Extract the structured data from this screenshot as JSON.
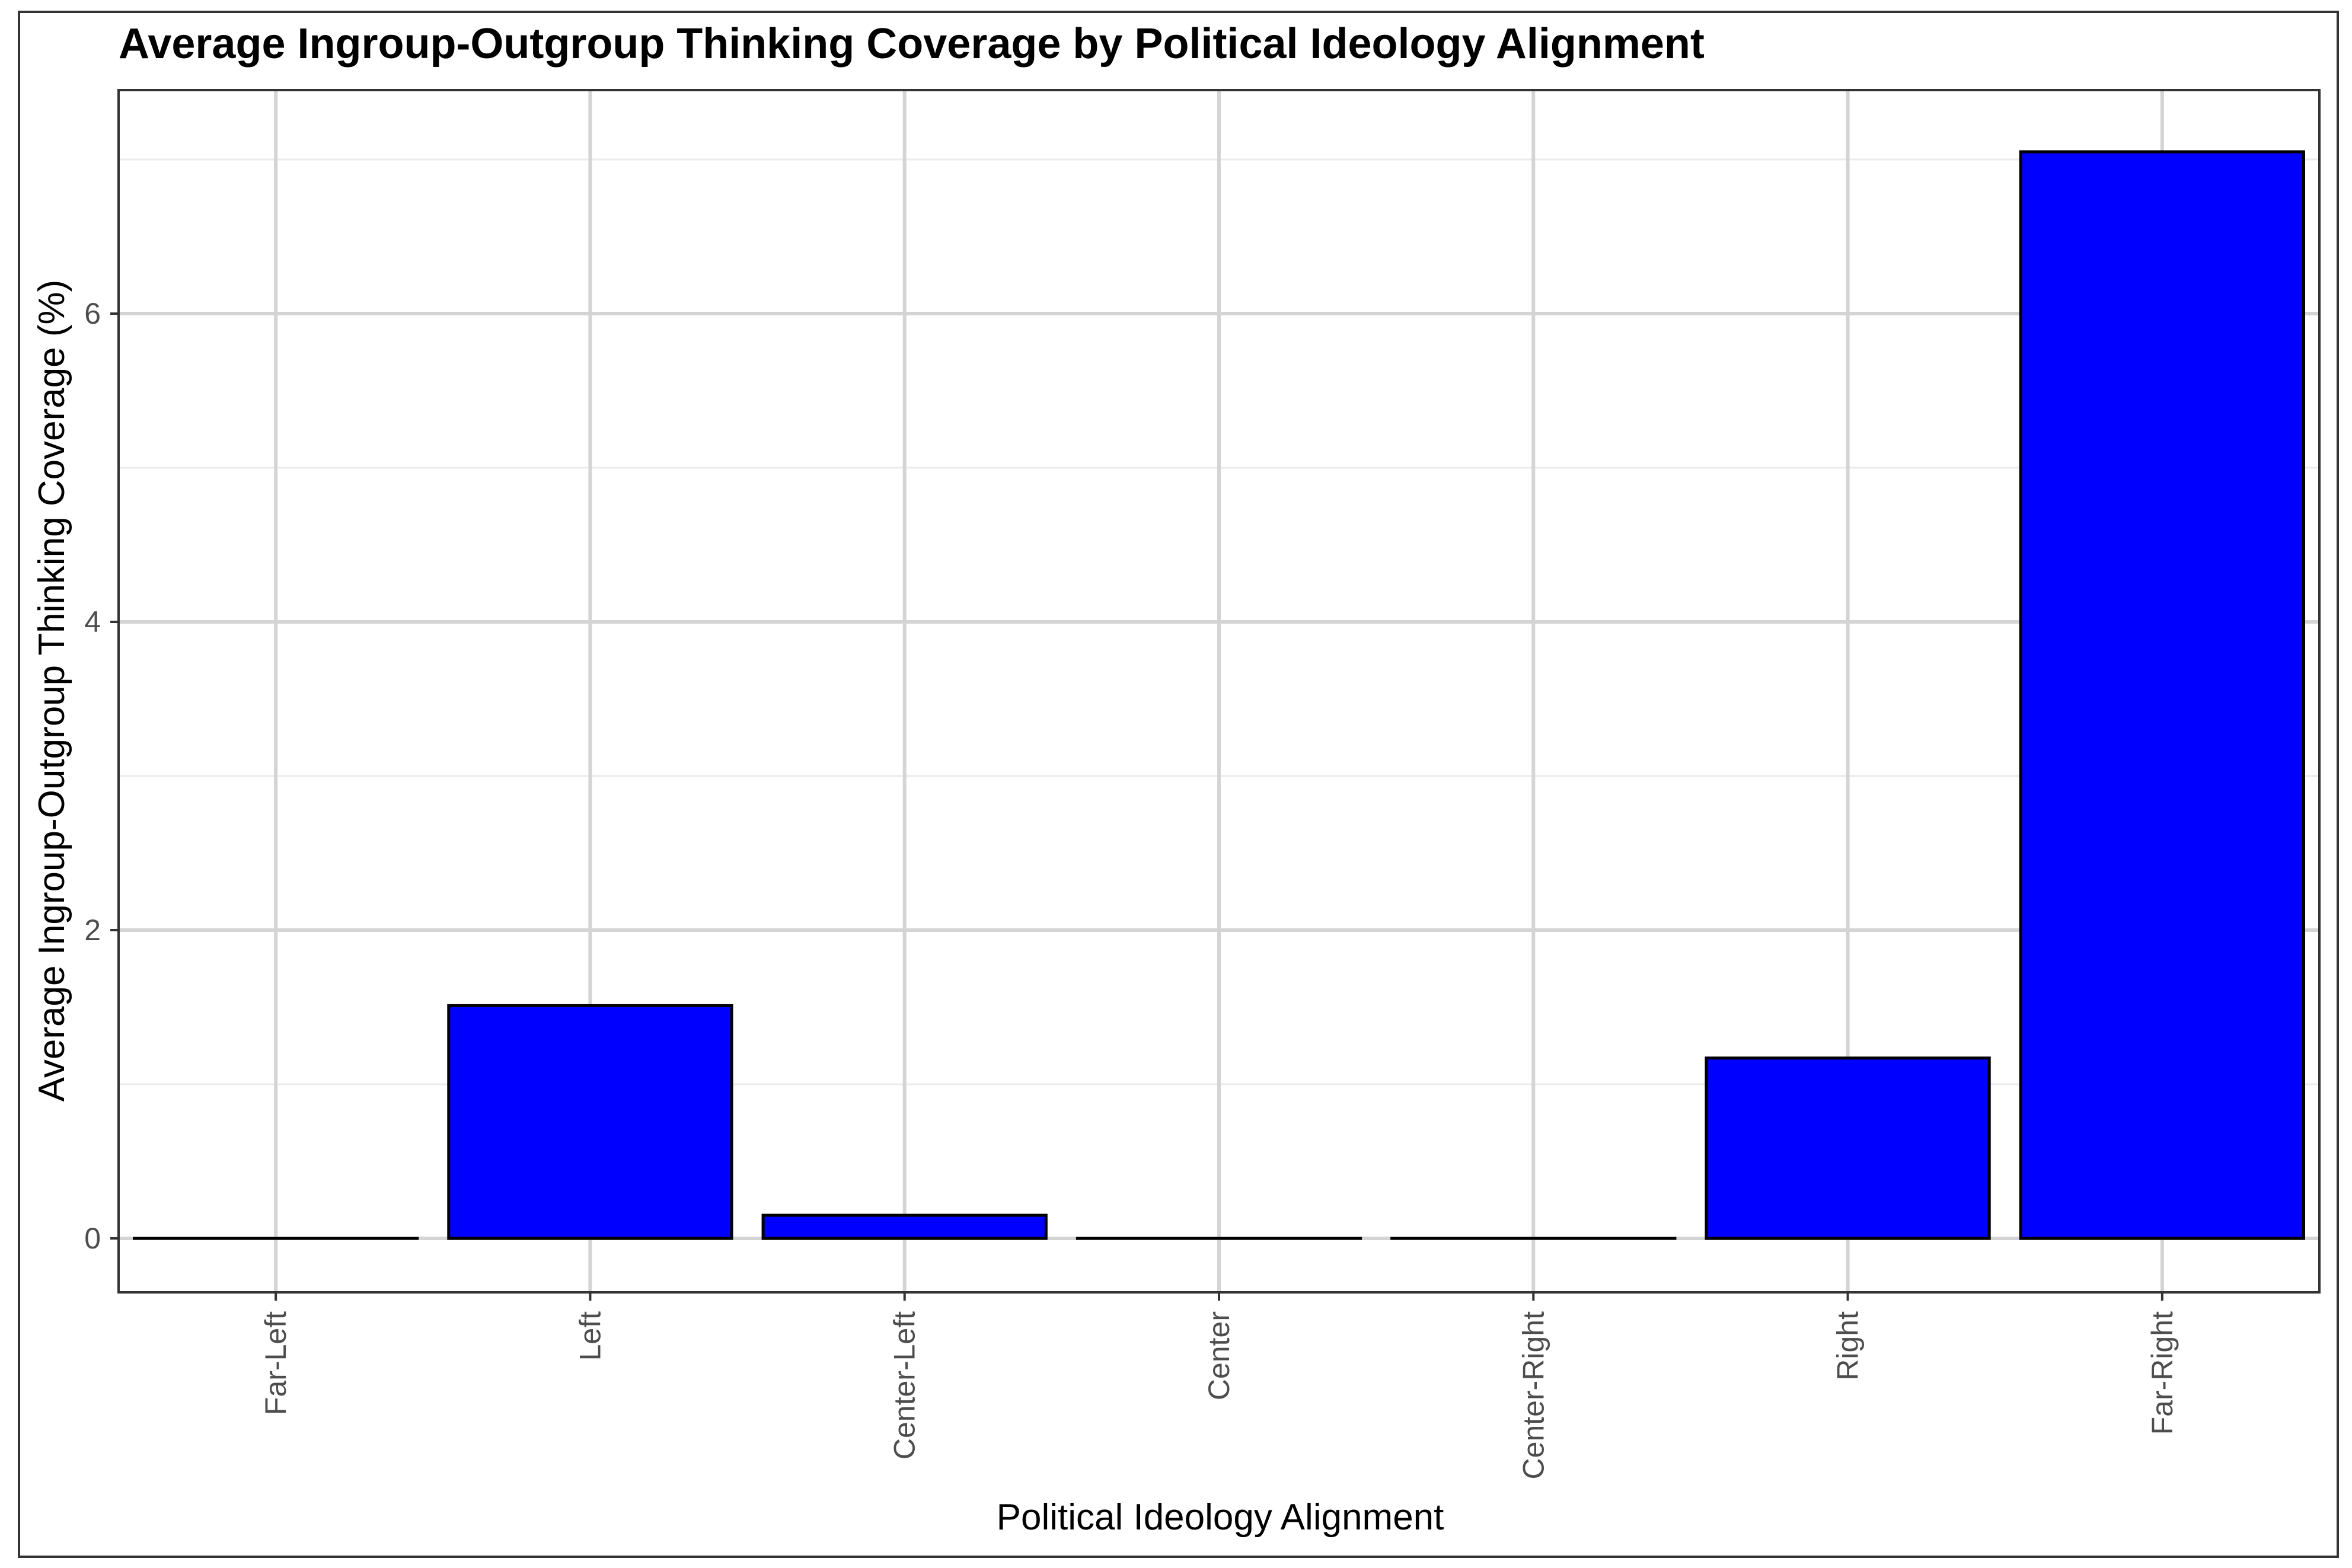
{
  "chart_data": {
    "type": "bar",
    "title": "Average Ingroup-Outgroup Thinking Coverage by Political Ideology Alignment",
    "xlabel": "Political Ideology Alignment",
    "ylabel": "Average Ingroup-Outgroup Thinking Coverage (%)",
    "categories": [
      "Far-Left",
      "Left",
      "Center-Left",
      "Center",
      "Center-Right",
      "Right",
      "Far-Right"
    ],
    "values": [
      0,
      1.51,
      0.15,
      0,
      0,
      1.17,
      7.05
    ],
    "ylim": [
      -0.35,
      7.45
    ],
    "yticks": [
      0,
      2,
      4,
      6
    ],
    "ytick_labels": [
      "0",
      "2",
      "4",
      "6"
    ],
    "y_minor_ticks": [
      1,
      3,
      5,
      7
    ],
    "grid": true,
    "legend": "none",
    "bar_color": "#0000ff",
    "bar_outline_color": "#000000"
  }
}
